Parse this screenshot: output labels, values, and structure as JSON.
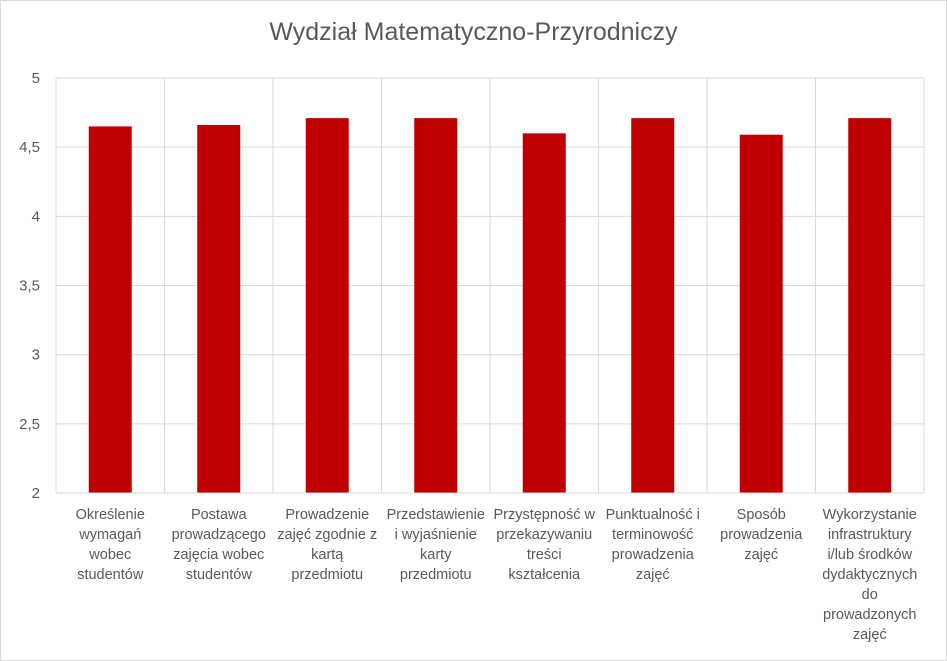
{
  "chart_data": {
    "type": "bar",
    "title": "Wydział Matematyczno-Przyrodniczy",
    "xlabel": "",
    "ylabel": "",
    "ylim": [
      2,
      5
    ],
    "yticks": [
      "2",
      "2,5",
      "3",
      "3,5",
      "4",
      "4,5",
      "5"
    ],
    "grid": true,
    "bar_color": "#c00000",
    "categories": [
      "Określenie wymagań wobec studentów",
      "Postawa prowadzącego zajęcia wobec studentów",
      "Prowadzenie zajęć zgodnie z kartą przedmiotu",
      "Przedstawienie i wyjaśnienie karty przedmiotu",
      "Przystępność w przekazywaniu treści kształcenia",
      "Punktualność i terminowość prowadzenia zajęć",
      "Sposób prowadzenia zajęć",
      "Wykorzystanie infrastruktury i/lub środków dydaktycznych do prowadzonych zajęć"
    ],
    "category_lines": [
      [
        "Określenie",
        "wymagań",
        "wobec",
        "studentów"
      ],
      [
        "Postawa",
        "prowadzącego",
        "zajęcia wobec",
        "studentów"
      ],
      [
        "Prowadzenie",
        "zajęć zgodnie z",
        "kartą",
        "przedmiotu"
      ],
      [
        "Przedstawienie",
        "i wyjaśnienie",
        "karty",
        "przedmiotu"
      ],
      [
        "Przystępność w",
        "przekazywaniu",
        "treści",
        "kształcenia"
      ],
      [
        "Punktualność i",
        "terminowość",
        "prowadzenia",
        "zajęć"
      ],
      [
        "Sposób",
        "prowadzenia",
        "zajęć"
      ],
      [
        "Wykorzystanie",
        "infrastruktury",
        "i/lub środków",
        "dydaktycznych",
        "do",
        "prowadzonych",
        "zajęć"
      ]
    ],
    "values": [
      4.65,
      4.66,
      4.71,
      4.71,
      4.6,
      4.71,
      4.59,
      4.71
    ]
  }
}
